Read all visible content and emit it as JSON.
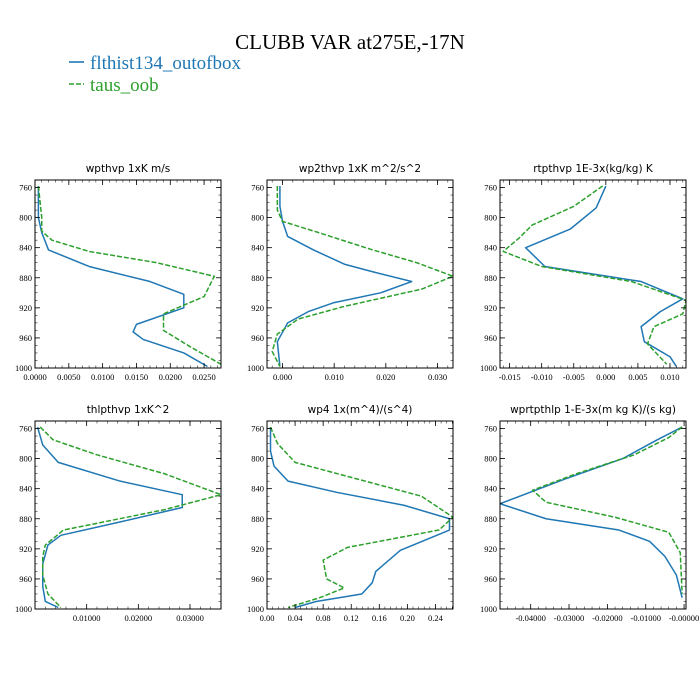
{
  "title": "CLUBB VAR at275E,-17N",
  "legend": {
    "placement": "top-left",
    "entries": [
      {
        "name": "flthist134_outofbox",
        "color": "#1f77b4",
        "dash": "solid"
      },
      {
        "name": "taus_oob",
        "color": "#2ca02c",
        "dash": "dashed"
      }
    ]
  },
  "chart_data": [
    {
      "type": "line",
      "title": "wpthvp  1xK m/s",
      "xlim": [
        0,
        0.0275
      ],
      "ylim": [
        1000,
        750
      ],
      "xticks": [
        0,
        0.005,
        0.01,
        0.015,
        0.02,
        0.025
      ],
      "xtick_labels": [
        "0.0000",
        "0.0050",
        "0.0100",
        "0.0150",
        "0.0200",
        "0.0250"
      ],
      "yticks": [
        760,
        800,
        840,
        880,
        920,
        960,
        1000
      ],
      "ytick_labels": [
        "760",
        "800",
        "840",
        "880",
        "920",
        "960",
        "1000"
      ],
      "series": [
        {
          "name": "flthist134_outofbox",
          "color": "#1f77b4",
          "dash": "solid",
          "x": [
            0.0005,
            0.0005,
            0.001,
            0.002,
            0.008,
            0.017,
            0.022,
            0.022,
            0.015,
            0.0145,
            0.016,
            0.022,
            0.0255
          ],
          "y": [
            758,
            800,
            820,
            843,
            865,
            885,
            902,
            920,
            942,
            952,
            962,
            980,
            998
          ]
        },
        {
          "name": "taus_oob",
          "color": "#2ca02c",
          "dash": "dashed",
          "x": [
            0.0005,
            0.001,
            0.001,
            0.0025,
            0.008,
            0.018,
            0.0265,
            0.025,
            0.019,
            0.019,
            0.023,
            0.0275
          ],
          "y": [
            758,
            800,
            818,
            830,
            845,
            860,
            878,
            905,
            928,
            950,
            972,
            995
          ]
        }
      ]
    },
    {
      "type": "line",
      "title": "wp2thvp  1xK m^2/s^2",
      "xlim": [
        -0.003,
        0.033
      ],
      "ylim": [
        1000,
        750
      ],
      "xticks": [
        0,
        0.01,
        0.02,
        0.03
      ],
      "xtick_labels": [
        "0.000",
        "0.010",
        "0.020",
        "0.030"
      ],
      "yticks": [
        760,
        800,
        840,
        880,
        920,
        960,
        1000
      ],
      "ytick_labels": [
        "760",
        "800",
        "840",
        "880",
        "920",
        "960",
        "1000"
      ],
      "series": [
        {
          "name": "flthist134_outofbox",
          "color": "#1f77b4",
          "dash": "solid",
          "x": [
            -0.0005,
            -0.0005,
            0.0,
            0.001,
            0.006,
            0.012,
            0.018,
            0.025,
            0.019,
            0.01,
            0.005,
            0.001,
            -0.001,
            -0.0005
          ],
          "y": [
            758,
            785,
            805,
            825,
            843,
            862,
            873,
            885,
            900,
            913,
            925,
            940,
            965,
            998
          ]
        },
        {
          "name": "taus_oob",
          "color": "#2ca02c",
          "dash": "dashed",
          "x": [
            -0.001,
            -0.001,
            0.0,
            0.007,
            0.017,
            0.026,
            0.033,
            0.027,
            0.012,
            0.003,
            -0.001,
            -0.002,
            -0.0005
          ],
          "y": [
            758,
            790,
            805,
            820,
            842,
            860,
            878,
            895,
            918,
            935,
            955,
            978,
            998
          ]
        }
      ]
    },
    {
      "type": "line",
      "title": "rtpthvp  1E-3x(kg/kg) K",
      "xlim": [
        -0.0165,
        0.0125
      ],
      "ylim": [
        1000,
        750
      ],
      "xticks": [
        -0.015,
        -0.01,
        -0.005,
        0.0,
        0.005,
        0.01
      ],
      "xtick_labels": [
        "-0.015",
        "-0.010",
        "-0.005",
        "0.000",
        "0.005",
        "0.010"
      ],
      "yticks": [
        760,
        800,
        840,
        880,
        920,
        960,
        1000
      ],
      "ytick_labels": [
        "760",
        "800",
        "840",
        "880",
        "920",
        "960",
        "1000"
      ],
      "series": [
        {
          "name": "flthist134_outofbox",
          "color": "#1f77b4",
          "dash": "solid",
          "x": [
            0.0,
            -0.0015,
            -0.0055,
            -0.0125,
            -0.0095,
            0.0055,
            0.012,
            0.0085,
            0.0055,
            0.006,
            0.01,
            0.011
          ],
          "y": [
            758,
            787,
            815,
            840,
            865,
            885,
            908,
            925,
            945,
            965,
            985,
            998
          ]
        },
        {
          "name": "taus_oob",
          "color": "#2ca02c",
          "dash": "dashed",
          "x": [
            -0.0005,
            -0.005,
            -0.0115,
            -0.0135,
            -0.016,
            -0.01,
            0.004,
            0.0125,
            0.012,
            0.0075,
            0.0065,
            0.0095
          ],
          "y": [
            758,
            785,
            810,
            827,
            845,
            865,
            885,
            910,
            928,
            945,
            968,
            995
          ]
        }
      ]
    },
    {
      "type": "line",
      "title": "thlpthvp  1xK^2",
      "xlim": [
        0,
        0.036
      ],
      "ylim": [
        1000,
        750
      ],
      "xticks": [
        0.01,
        0.02,
        0.03
      ],
      "xtick_labels": [
        "0.01000",
        "0.02000",
        "0.03000"
      ],
      "yticks": [
        760,
        800,
        840,
        880,
        920,
        960,
        1000
      ],
      "ytick_labels": [
        "760",
        "800",
        "840",
        "880",
        "920",
        "960",
        "1000"
      ],
      "series": [
        {
          "name": "flthist134_outofbox",
          "color": "#1f77b4",
          "dash": "solid",
          "x": [
            0.0005,
            0.0015,
            0.0045,
            0.0165,
            0.0285,
            0.0285,
            0.016,
            0.005,
            0.0025,
            0.0015,
            0.0015,
            0.002,
            0.0045
          ],
          "y": [
            758,
            782,
            805,
            830,
            848,
            865,
            885,
            902,
            915,
            940,
            970,
            990,
            998
          ]
        },
        {
          "name": "taus_oob",
          "color": "#2ca02c",
          "dash": "dashed",
          "x": [
            0.001,
            0.0035,
            0.012,
            0.025,
            0.036,
            0.025,
            0.0055,
            0.002,
            0.0015,
            0.0015,
            0.0025,
            0.005
          ],
          "y": [
            758,
            775,
            795,
            820,
            848,
            868,
            895,
            915,
            930,
            955,
            980,
            998
          ]
        }
      ]
    },
    {
      "type": "line",
      "title": "wp4  1x(m^4)/(s^4)",
      "xlim": [
        0,
        0.265
      ],
      "ylim": [
        1000,
        750
      ],
      "xticks": [
        0,
        0.04,
        0.08,
        0.12,
        0.16,
        0.2,
        0.24
      ],
      "xtick_labels": [
        "0.00",
        "0.04",
        "0.08",
        "0.12",
        "0.16",
        "0.20",
        "0.24"
      ],
      "yticks": [
        760,
        800,
        840,
        880,
        920,
        960,
        1000
      ],
      "ytick_labels": [
        "760",
        "800",
        "840",
        "880",
        "920",
        "960",
        "1000"
      ],
      "series": [
        {
          "name": "flthist134_outofbox",
          "color": "#1f77b4",
          "dash": "solid",
          "x": [
            0.005,
            0.005,
            0.01,
            0.03,
            0.1,
            0.195,
            0.26,
            0.26,
            0.19,
            0.155,
            0.15,
            0.135,
            0.07,
            0.04
          ],
          "y": [
            758,
            790,
            810,
            830,
            845,
            862,
            880,
            895,
            922,
            950,
            965,
            980,
            990,
            998
          ]
        },
        {
          "name": "taus_oob",
          "color": "#2ca02c",
          "dash": "dashed",
          "x": [
            0.005,
            0.015,
            0.04,
            0.12,
            0.22,
            0.265,
            0.245,
            0.115,
            0.08,
            0.085,
            0.11,
            0.075,
            0.03
          ],
          "y": [
            758,
            780,
            805,
            825,
            850,
            878,
            895,
            918,
            935,
            960,
            972,
            985,
            998
          ]
        }
      ]
    },
    {
      "type": "line",
      "title": "wprtpthlp  1-E-3x(m kg K)/(s kg)",
      "xlim": [
        -0.048,
        0.0005
      ],
      "ylim": [
        1000,
        750
      ],
      "xticks": [
        -0.04,
        -0.03,
        -0.02,
        -0.01,
        0.0
      ],
      "xtick_labels": [
        "-0.04000",
        "-0.03000",
        "-0.02000",
        "-0.01000",
        "-0.00000"
      ],
      "yticks": [
        760,
        800,
        840,
        880,
        920,
        960,
        1000
      ],
      "ytick_labels": [
        "760",
        "800",
        "840",
        "880",
        "920",
        "960",
        "1000"
      ],
      "series": [
        {
          "name": "flthist134_outofbox",
          "color": "#1f77b4",
          "dash": "solid",
          "x": [
            -0.0005,
            -0.007,
            -0.016,
            -0.031,
            -0.048,
            -0.036,
            -0.017,
            -0.009,
            -0.005,
            -0.002,
            -0.0005
          ],
          "y": [
            758,
            775,
            800,
            827,
            860,
            880,
            895,
            910,
            930,
            955,
            985
          ]
        },
        {
          "name": "taus_oob",
          "color": "#2ca02c",
          "dash": "dashed",
          "x": [
            -0.0005,
            -0.004,
            -0.013,
            -0.028,
            -0.0395,
            -0.036,
            -0.018,
            -0.004,
            -0.001,
            -0.0005
          ],
          "y": [
            758,
            772,
            795,
            820,
            842,
            858,
            878,
            898,
            925,
            980
          ]
        }
      ]
    }
  ]
}
